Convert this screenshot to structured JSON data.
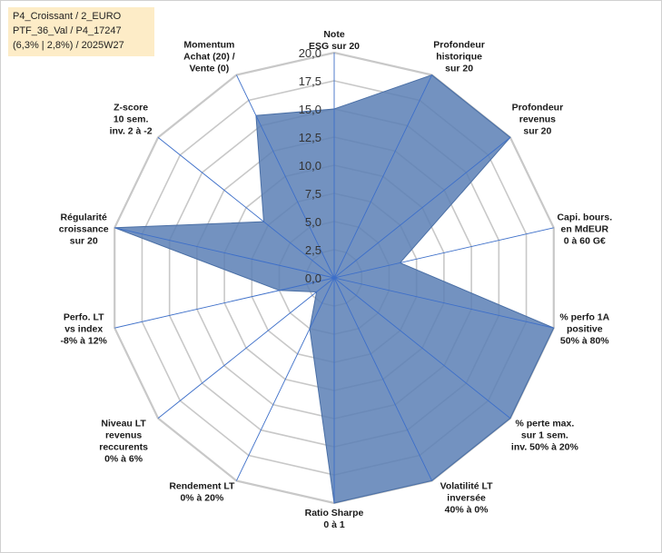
{
  "info_box": {
    "line1": "P4_Croissant / 2_EURO",
    "line2": "PTF_36_Val / P4_17247",
    "line3": "(6,3% | 2,8%) / 2025W27"
  },
  "chart_data": {
    "type": "radar",
    "title": "",
    "series": [
      {
        "name": "",
        "color": "#5b7fb5",
        "values": [
          15.0,
          20.0,
          20.0,
          6.0,
          20.0,
          20.0,
          20.0,
          20.0,
          5.0,
          2.0,
          5.0,
          20.0,
          8.0,
          16.0
        ]
      }
    ],
    "axes": [
      [
        "Note",
        "ESG sur 20"
      ],
      [
        "Profondeur",
        "historique",
        "sur 20"
      ],
      [
        "Profondeur",
        "revenus",
        "sur 20"
      ],
      [
        "Capi. bours.",
        "en MdEUR",
        "0 à 60 G€"
      ],
      [
        "% perfo 1A",
        "positive",
        "50% à 80%"
      ],
      [
        "% perte max.",
        "sur 1 sem.",
        "inv. 50% à 20%"
      ],
      [
        "Volatilité LT",
        "inversée",
        "40% à 0%"
      ],
      [
        "Ratio Sharpe",
        "0 à 1"
      ],
      [
        "Rendement LT",
        "0% à 20%"
      ],
      [
        "Niveau LT",
        "revenus",
        "reccurents",
        "0% à 6%"
      ],
      [
        "Perfo. LT",
        "vs index",
        "-8% à 12%"
      ],
      [
        "Régularité",
        "croissance",
        "sur 20"
      ],
      [
        "Z-score",
        "10 sem.",
        "inv. 2 à -2"
      ],
      [
        "Momentum",
        "Achat (20) /",
        "Vente (0)"
      ]
    ],
    "radial_ticks": [
      "0,0",
      "2,5",
      "5,0",
      "7,5",
      "10,0",
      "12,5",
      "15,0",
      "17,5",
      "20,0"
    ],
    "rmin": 0,
    "rmax": 20,
    "grid": true,
    "legend": "none"
  }
}
